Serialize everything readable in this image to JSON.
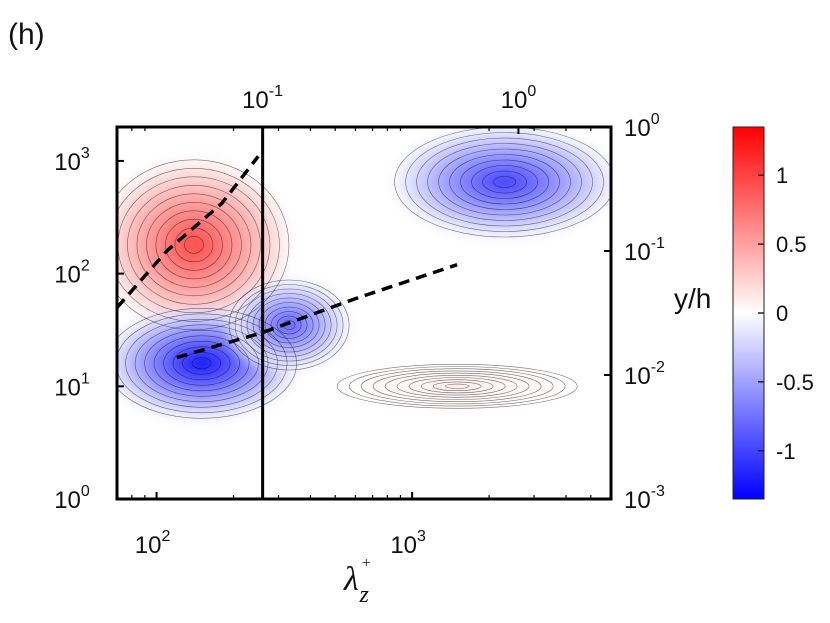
{
  "panel_label": "(h)",
  "chart_data": {
    "type": "heatmap",
    "title": "",
    "xlabel": "λz+",
    "xlabel_base": "λ",
    "xlabel_sub": "z",
    "xlabel_sup": "+",
    "ylabel": "",
    "ylabel_right": "y/h",
    "x_scale": "log",
    "y_scale": "log",
    "xlim": [
      70,
      6000
    ],
    "ylim": [
      1,
      2000
    ],
    "top_xlim": [
      0.027,
      2.3
    ],
    "right_ylim": [
      0.001,
      1
    ],
    "x_ticks": [
      {
        "value": 100,
        "base": "10",
        "exp": "2"
      },
      {
        "value": 1000,
        "base": "10",
        "exp": "3"
      }
    ],
    "y_ticks": [
      {
        "value": 1,
        "base": "10",
        "exp": "0"
      },
      {
        "value": 10,
        "base": "10",
        "exp": "1"
      },
      {
        "value": 100,
        "base": "10",
        "exp": "2"
      },
      {
        "value": 1000,
        "base": "10",
        "exp": "3"
      }
    ],
    "top_ticks": [
      {
        "value": 0.1,
        "base": "10",
        "exp": "-1"
      },
      {
        "value": 1,
        "base": "10",
        "exp": "0"
      }
    ],
    "right_ticks": [
      {
        "value": 0.001,
        "base": "10",
        "exp": "-3"
      },
      {
        "value": 0.01,
        "base": "10",
        "exp": "-2"
      },
      {
        "value": 0.1,
        "base": "10",
        "exp": "-1"
      },
      {
        "value": 1,
        "base": "10",
        "exp": "0"
      }
    ],
    "colorbar": {
      "min": -1.35,
      "max": 1.35,
      "ticks": [
        {
          "value": 1,
          "label": "1"
        },
        {
          "value": 0.5,
          "label": "0.5"
        },
        {
          "value": 0,
          "label": "0"
        },
        {
          "value": -0.5,
          "label": "-0.5"
        },
        {
          "value": -1,
          "label": "-1"
        }
      ],
      "colors": {
        "negative": "#0000ff",
        "zero": "#ffffff",
        "positive": "#ff0000"
      }
    },
    "vertical_line_x": 260,
    "regions": [
      {
        "sign": "positive",
        "center": [
          140,
          180
        ],
        "peak": 0.95
      },
      {
        "sign": "negative",
        "center": [
          150,
          16
        ],
        "peak": -1.25
      },
      {
        "sign": "negative",
        "center": [
          2300,
          650
        ],
        "peak": -1.0
      },
      {
        "sign": "negative",
        "center": [
          330,
          35
        ],
        "peak": -0.85
      },
      {
        "sign": "positive",
        "center": [
          1500,
          10
        ],
        "peak": 0.1
      }
    ],
    "dashed_lines": [
      {
        "name": "",
        "points": [
          [
            70,
            50
          ],
          [
            110,
            160
          ],
          [
            180,
            420
          ],
          [
            250,
            1100
          ]
        ]
      },
      {
        "name": "",
        "points": [
          [
            120,
            18
          ],
          [
            260,
            30
          ],
          [
            600,
            60
          ],
          [
            1500,
            120
          ]
        ]
      }
    ],
    "grid": false
  }
}
